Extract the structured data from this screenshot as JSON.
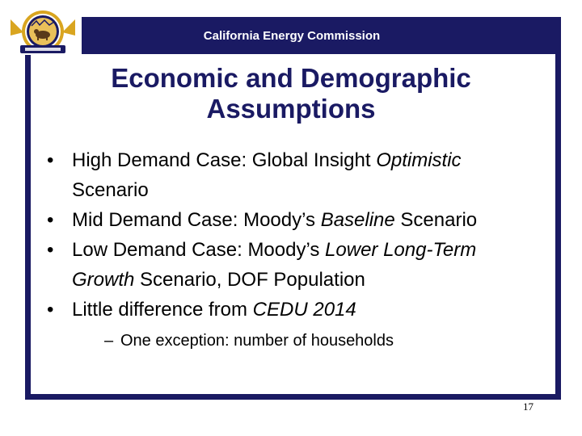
{
  "header": {
    "org_name": "California Energy Commission",
    "seal_lettering": [
      "STATE OF CALIFORNIA",
      "ENERGY COMMISSION"
    ]
  },
  "slide": {
    "title_line1": "Economic and Demographic",
    "title_line2": "Assumptions",
    "bullets": [
      {
        "parts": [
          {
            "text": "High Demand Case: Global Insight ",
            "italic": false
          },
          {
            "text": "Optimistic",
            "italic": true
          },
          {
            "text": " Scenario",
            "italic": false
          }
        ]
      },
      {
        "parts": [
          {
            "text": "Mid Demand Case: Moody’s ",
            "italic": false
          },
          {
            "text": "Baseline",
            "italic": true
          },
          {
            "text": " Scenario",
            "italic": false
          }
        ]
      },
      {
        "parts": [
          {
            "text": "Low Demand Case: Moody’s ",
            "italic": false
          },
          {
            "text": "Lower Long-Term Growth",
            "italic": true
          },
          {
            "text": " Scenario, DOF Population",
            "italic": false
          }
        ]
      },
      {
        "parts": [
          {
            "text": "Little difference from ",
            "italic": false
          },
          {
            "text": "CEDU 2014",
            "italic": true
          }
        ],
        "sub_bullets": [
          "One exception: number of households"
        ]
      }
    ],
    "page_number": "17"
  },
  "colors": {
    "frame": "#1a1a63",
    "title": "#1a1a63",
    "seal_gold": "#d9a520",
    "seal_blue": "#1a1a63"
  },
  "icons": {
    "seal": "california-energy-commission-seal-icon"
  }
}
